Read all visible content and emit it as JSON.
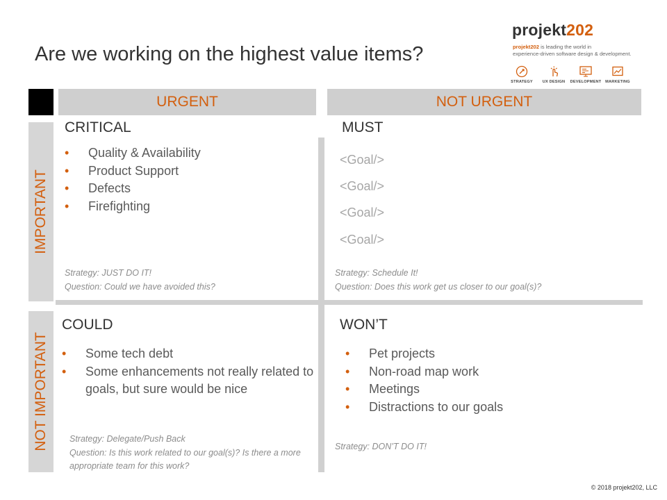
{
  "title": "Are we working on the highest value items?",
  "logo": {
    "word_prefix": "projekt",
    "word_number": "202",
    "tagline_brand": "projekt202",
    "tagline_rest": " is leading the world in",
    "tagline_line2": "experience-driven software design & development.",
    "services": [
      {
        "icon": "strategy-icon",
        "label": "STRATEGY"
      },
      {
        "icon": "ux-design-icon",
        "label": "UX DESIGN"
      },
      {
        "icon": "development-icon",
        "label": "DEVELOPMENT"
      },
      {
        "icon": "marketing-icon",
        "label": "MARKETING"
      }
    ]
  },
  "columns": {
    "urgent": "URGENT",
    "not_urgent": "NOT URGENT"
  },
  "rows": {
    "important": "IMPORTANT",
    "not_important": "NOT IMPORTANT"
  },
  "quadrants": {
    "critical": {
      "title": "CRITICAL",
      "items": [
        "Quality & Availability",
        "Product Support",
        "Defects",
        "Firefighting"
      ],
      "strategy": "Strategy: JUST DO IT!",
      "question": "Question:  Could we have avoided this?"
    },
    "must": {
      "title": "MUST",
      "goals": [
        "<Goal/>",
        "<Goal/>",
        "<Goal/>",
        "<Goal/>"
      ],
      "strategy": "Strategy: Schedule It!",
      "question": "Question: Does this work get us closer to our goal(s)?"
    },
    "could": {
      "title": "COULD",
      "items": [
        "Some tech debt",
        "Some enhancements not really related to goals, but sure would be nice"
      ],
      "strategy": "Strategy: Delegate/Push Back",
      "question": "Question: Is this work related to our goal(s)? Is there a more appropriate team for this work?"
    },
    "wont": {
      "title": "WON’T",
      "items": [
        "Pet projects",
        "Non-road map work",
        "Meetings",
        "Distractions to our goals"
      ],
      "strategy": "Strategy: DON’T DO IT!"
    }
  },
  "copyright": "© 2018 projekt202, LLC",
  "colors": {
    "accent": "#d35f0e",
    "header_bg": "#cfcfcf",
    "side_bg": "#d6d6d6",
    "divider": "#d0d0d0",
    "corner": "#000000"
  }
}
